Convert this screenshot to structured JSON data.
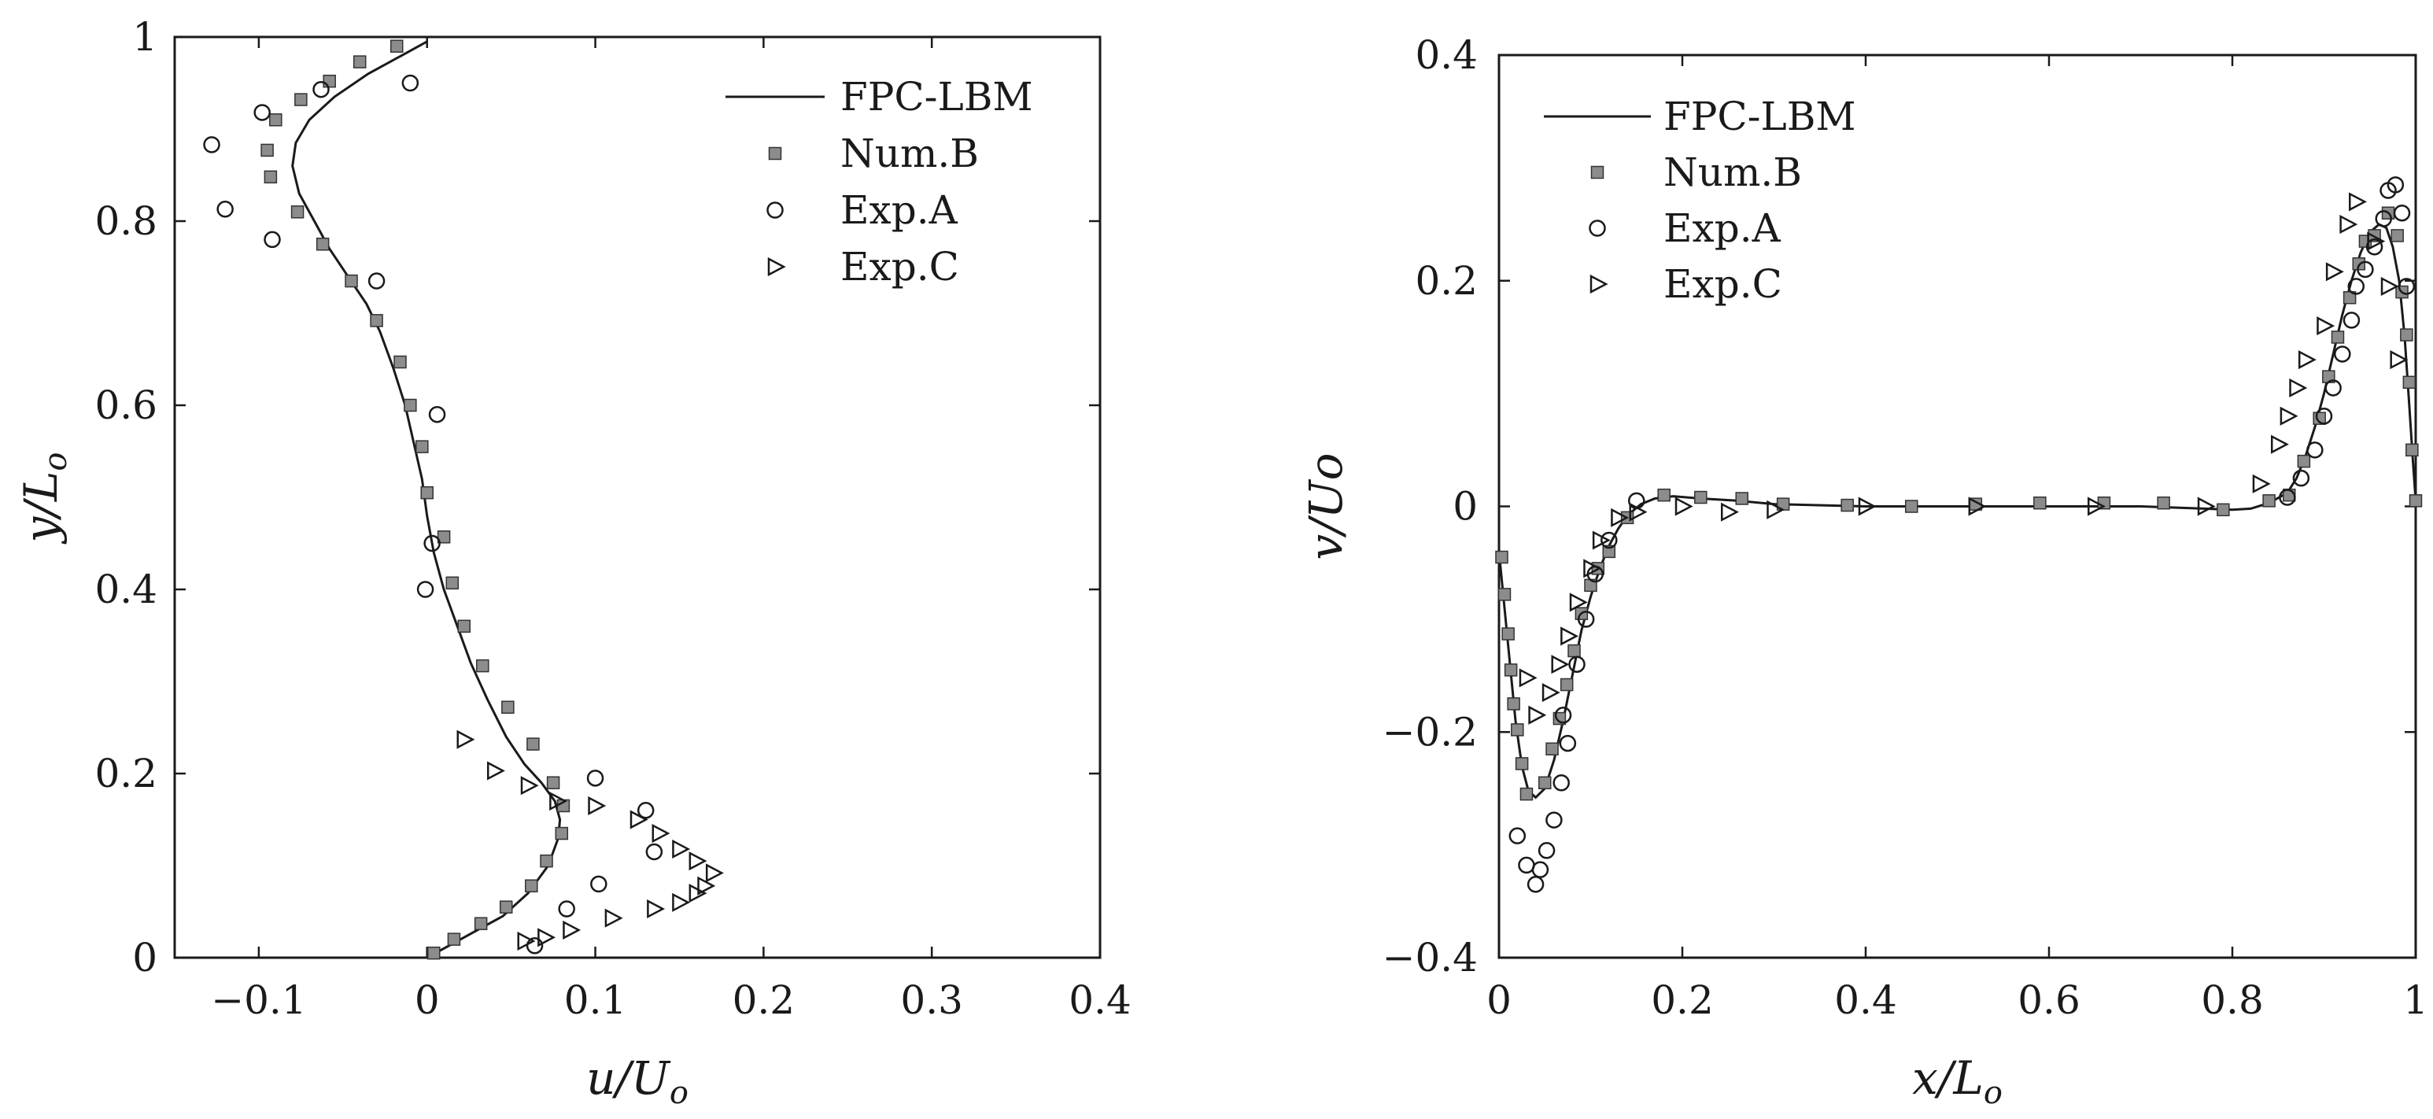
{
  "chart_data": [
    {
      "type": "line",
      "title": "",
      "xlabel": "u/U_o",
      "ylabel": "y/L_o",
      "xlim": [
        -0.15,
        0.4
      ],
      "ylim": [
        0,
        1
      ],
      "xticks": [
        -0.1,
        0,
        0.1,
        0.2,
        0.3,
        0.4
      ],
      "yticks": [
        0,
        0.2,
        0.4,
        0.6,
        0.8,
        1
      ],
      "xtick_labels": [
        "−0.1",
        "0",
        "0.1",
        "0.2",
        "0.3",
        "0.4"
      ],
      "ytick_labels": [
        "0",
        "0.2",
        "0.4",
        "0.6",
        "0.8",
        "1"
      ],
      "legend_location": "top-right",
      "series": [
        {
          "name": "FPC-LBM",
          "style": "line",
          "points": [
            [
              0.0,
              0.0
            ],
            [
              0.02,
              0.02
            ],
            [
              0.045,
              0.045
            ],
            [
              0.06,
              0.07
            ],
            [
              0.072,
              0.1
            ],
            [
              0.078,
              0.13
            ],
            [
              0.079,
              0.15
            ],
            [
              0.076,
              0.17
            ],
            [
              0.068,
              0.19
            ],
            [
              0.058,
              0.21
            ],
            [
              0.047,
              0.24
            ],
            [
              0.036,
              0.28
            ],
            [
              0.026,
              0.32
            ],
            [
              0.018,
              0.36
            ],
            [
              0.01,
              0.4
            ],
            [
              0.004,
              0.44
            ],
            [
              0.0,
              0.48
            ],
            [
              -0.003,
              0.52
            ],
            [
              -0.008,
              0.56
            ],
            [
              -0.013,
              0.6
            ],
            [
              -0.02,
              0.64
            ],
            [
              -0.028,
              0.68
            ],
            [
              -0.036,
              0.71
            ],
            [
              -0.047,
              0.74
            ],
            [
              -0.058,
              0.77
            ],
            [
              -0.067,
              0.8
            ],
            [
              -0.076,
              0.83
            ],
            [
              -0.08,
              0.86
            ],
            [
              -0.078,
              0.885
            ],
            [
              -0.07,
              0.91
            ],
            [
              -0.055,
              0.935
            ],
            [
              -0.035,
              0.96
            ],
            [
              -0.015,
              0.98
            ],
            [
              0.0,
              0.995
            ]
          ]
        },
        {
          "name": "Num.B",
          "style": "square",
          "points": [
            [
              0.004,
              0.005
            ],
            [
              0.016,
              0.02
            ],
            [
              0.032,
              0.037
            ],
            [
              0.047,
              0.055
            ],
            [
              0.062,
              0.078
            ],
            [
              0.071,
              0.105
            ],
            [
              0.08,
              0.135
            ],
            [
              0.081,
              0.165
            ],
            [
              0.075,
              0.19
            ],
            [
              0.063,
              0.232
            ],
            [
              0.048,
              0.272
            ],
            [
              0.033,
              0.317
            ],
            [
              0.022,
              0.36
            ],
            [
              0.015,
              0.407
            ],
            [
              0.01,
              0.457
            ],
            [
              0.0,
              0.505
            ],
            [
              -0.003,
              0.555
            ],
            [
              -0.01,
              0.6
            ],
            [
              -0.016,
              0.647
            ],
            [
              -0.03,
              0.692
            ],
            [
              -0.045,
              0.735
            ],
            [
              -0.062,
              0.775
            ],
            [
              -0.077,
              0.81
            ],
            [
              -0.093,
              0.848
            ],
            [
              -0.095,
              0.877
            ],
            [
              -0.09,
              0.91
            ],
            [
              -0.075,
              0.932
            ],
            [
              -0.058,
              0.952
            ],
            [
              -0.04,
              0.973
            ],
            [
              -0.018,
              0.99
            ]
          ]
        },
        {
          "name": "Exp.A",
          "style": "circle",
          "points": [
            [
              0.064,
              0.013
            ],
            [
              0.083,
              0.053
            ],
            [
              0.102,
              0.08
            ],
            [
              0.135,
              0.115
            ],
            [
              0.13,
              0.16
            ],
            [
              0.1,
              0.195
            ],
            [
              -0.001,
              0.4
            ],
            [
              0.003,
              0.45
            ],
            [
              0.006,
              0.59
            ],
            [
              -0.03,
              0.735
            ],
            [
              -0.092,
              0.78
            ],
            [
              -0.12,
              0.813
            ],
            [
              -0.128,
              0.883
            ],
            [
              -0.098,
              0.918
            ],
            [
              -0.063,
              0.943
            ],
            [
              -0.01,
              0.95
            ]
          ]
        },
        {
          "name": "Exp.C",
          "style": "triangle-right",
          "points": [
            [
              0.058,
              0.018
            ],
            [
              0.07,
              0.022
            ],
            [
              0.085,
              0.03
            ],
            [
              0.11,
              0.043
            ],
            [
              0.135,
              0.053
            ],
            [
              0.15,
              0.06
            ],
            [
              0.16,
              0.07
            ],
            [
              0.165,
              0.078
            ],
            [
              0.17,
              0.092
            ],
            [
              0.16,
              0.105
            ],
            [
              0.15,
              0.118
            ],
            [
              0.138,
              0.135
            ],
            [
              0.125,
              0.15
            ],
            [
              0.1,
              0.165
            ],
            [
              0.077,
              0.17
            ],
            [
              0.06,
              0.187
            ],
            [
              0.04,
              0.203
            ],
            [
              0.022,
              0.237
            ]
          ]
        }
      ]
    },
    {
      "type": "line",
      "title": "",
      "xlabel": "x/L_o",
      "ylabel": "v/Uo",
      "xlim": [
        0,
        1
      ],
      "ylim": [
        -0.4,
        0.4
      ],
      "xticks": [
        0,
        0.2,
        0.4,
        0.6,
        0.8,
        1
      ],
      "yticks": [
        -0.4,
        -0.2,
        0,
        0.2,
        0.4
      ],
      "xtick_labels": [
        "0",
        "0.2",
        "0.4",
        "0.6",
        "0.8",
        "1"
      ],
      "ytick_labels": [
        "−0.4",
        "−0.2",
        "0",
        "0.2",
        "0.4"
      ],
      "legend_location": "top-left",
      "series": [
        {
          "name": "FPC-LBM",
          "style": "line",
          "points": [
            [
              0.0,
              -0.04
            ],
            [
              0.006,
              -0.09
            ],
            [
              0.012,
              -0.14
            ],
            [
              0.018,
              -0.19
            ],
            [
              0.025,
              -0.23
            ],
            [
              0.032,
              -0.252
            ],
            [
              0.04,
              -0.258
            ],
            [
              0.05,
              -0.25
            ],
            [
              0.06,
              -0.225
            ],
            [
              0.07,
              -0.19
            ],
            [
              0.08,
              -0.15
            ],
            [
              0.09,
              -0.11
            ],
            [
              0.1,
              -0.08
            ],
            [
              0.11,
              -0.055
            ],
            [
              0.12,
              -0.035
            ],
            [
              0.13,
              -0.02
            ],
            [
              0.14,
              -0.008
            ],
            [
              0.155,
              0.002
            ],
            [
              0.17,
              0.007
            ],
            [
              0.19,
              0.009
            ],
            [
              0.22,
              0.007
            ],
            [
              0.26,
              0.005
            ],
            [
              0.3,
              0.002
            ],
            [
              0.4,
              0.0
            ],
            [
              0.5,
              0.0
            ],
            [
              0.6,
              0.0
            ],
            [
              0.7,
              0.0
            ],
            [
              0.77,
              -0.002
            ],
            [
              0.8,
              -0.003
            ],
            [
              0.82,
              -0.002
            ],
            [
              0.84,
              0.003
            ],
            [
              0.86,
              0.012
            ],
            [
              0.87,
              0.025
            ],
            [
              0.88,
              0.045
            ],
            [
              0.89,
              0.07
            ],
            [
              0.9,
              0.1
            ],
            [
              0.91,
              0.135
            ],
            [
              0.92,
              0.17
            ],
            [
              0.93,
              0.2
            ],
            [
              0.94,
              0.225
            ],
            [
              0.95,
              0.243
            ],
            [
              0.96,
              0.25
            ],
            [
              0.968,
              0.247
            ],
            [
              0.975,
              0.23
            ],
            [
              0.982,
              0.2
            ],
            [
              0.988,
              0.15
            ],
            [
              0.993,
              0.09
            ],
            [
              0.997,
              0.04
            ],
            [
              1.0,
              0.005
            ]
          ]
        },
        {
          "name": "Num.B",
          "style": "square",
          "points": [
            [
              0.003,
              -0.045
            ],
            [
              0.006,
              -0.078
            ],
            [
              0.01,
              -0.113
            ],
            [
              0.013,
              -0.145
            ],
            [
              0.016,
              -0.175
            ],
            [
              0.02,
              -0.198
            ],
            [
              0.025,
              -0.228
            ],
            [
              0.03,
              -0.255
            ],
            [
              0.05,
              -0.245
            ],
            [
              0.058,
              -0.215
            ],
            [
              0.066,
              -0.188
            ],
            [
              0.074,
              -0.158
            ],
            [
              0.082,
              -0.128
            ],
            [
              0.09,
              -0.095
            ],
            [
              0.1,
              -0.07
            ],
            [
              0.108,
              -0.055
            ],
            [
              0.12,
              -0.04
            ],
            [
              0.14,
              -0.01
            ],
            [
              0.18,
              0.01
            ],
            [
              0.22,
              0.008
            ],
            [
              0.265,
              0.007
            ],
            [
              0.31,
              0.002
            ],
            [
              0.38,
              0.001
            ],
            [
              0.45,
              0.0
            ],
            [
              0.52,
              0.002
            ],
            [
              0.59,
              0.003
            ],
            [
              0.66,
              0.003
            ],
            [
              0.725,
              0.003
            ],
            [
              0.79,
              -0.003
            ],
            [
              0.84,
              0.005
            ],
            [
              0.862,
              0.01
            ],
            [
              0.878,
              0.04
            ],
            [
              0.895,
              0.078
            ],
            [
              0.905,
              0.115
            ],
            [
              0.915,
              0.15
            ],
            [
              0.928,
              0.185
            ],
            [
              0.938,
              0.215
            ],
            [
              0.945,
              0.235
            ],
            [
              0.955,
              0.24
            ],
            [
              0.97,
              0.26
            ],
            [
              0.98,
              0.24
            ],
            [
              0.985,
              0.19
            ],
            [
              0.99,
              0.152
            ],
            [
              0.993,
              0.11
            ],
            [
              0.996,
              0.05
            ],
            [
              1.0,
              0.005
            ]
          ]
        },
        {
          "name": "Exp.A",
          "style": "circle",
          "points": [
            [
              0.02,
              -0.292
            ],
            [
              0.03,
              -0.318
            ],
            [
              0.04,
              -0.335
            ],
            [
              0.045,
              -0.322
            ],
            [
              0.052,
              -0.305
            ],
            [
              0.06,
              -0.278
            ],
            [
              0.068,
              -0.245
            ],
            [
              0.07,
              -0.185
            ],
            [
              0.075,
              -0.21
            ],
            [
              0.085,
              -0.14
            ],
            [
              0.095,
              -0.1
            ],
            [
              0.105,
              -0.06
            ],
            [
              0.12,
              -0.03
            ],
            [
              0.15,
              0.005
            ],
            [
              0.86,
              0.008
            ],
            [
              0.875,
              0.025
            ],
            [
              0.89,
              0.05
            ],
            [
              0.9,
              0.08
            ],
            [
              0.91,
              0.105
            ],
            [
              0.92,
              0.135
            ],
            [
              0.93,
              0.165
            ],
            [
              0.935,
              0.195
            ],
            [
              0.945,
              0.21
            ],
            [
              0.955,
              0.23
            ],
            [
              0.965,
              0.255
            ],
            [
              0.97,
              0.28
            ],
            [
              0.978,
              0.285
            ],
            [
              0.985,
              0.26
            ],
            [
              0.99,
              0.195
            ]
          ]
        },
        {
          "name": "Exp.C",
          "style": "triangle-right",
          "points": [
            [
              0.03,
              -0.152
            ],
            [
              0.04,
              -0.185
            ],
            [
              0.055,
              -0.165
            ],
            [
              0.065,
              -0.14
            ],
            [
              0.075,
              -0.115
            ],
            [
              0.085,
              -0.085
            ],
            [
              0.1,
              -0.055
            ],
            [
              0.11,
              -0.03
            ],
            [
              0.13,
              -0.01
            ],
            [
              0.15,
              -0.005
            ],
            [
              0.2,
              0.0
            ],
            [
              0.25,
              -0.005
            ],
            [
              0.3,
              -0.003
            ],
            [
              0.4,
              0.0
            ],
            [
              0.52,
              0.0
            ],
            [
              0.65,
              0.0
            ],
            [
              0.77,
              0.0
            ],
            [
              0.83,
              0.02
            ],
            [
              0.85,
              0.055
            ],
            [
              0.86,
              0.08
            ],
            [
              0.87,
              0.105
            ],
            [
              0.88,
              0.13
            ],
            [
              0.9,
              0.16
            ],
            [
              0.91,
              0.208
            ],
            [
              0.925,
              0.25
            ],
            [
              0.935,
              0.27
            ],
            [
              0.955,
              0.235
            ],
            [
              0.97,
              0.195
            ],
            [
              0.98,
              0.13
            ]
          ]
        }
      ]
    }
  ]
}
